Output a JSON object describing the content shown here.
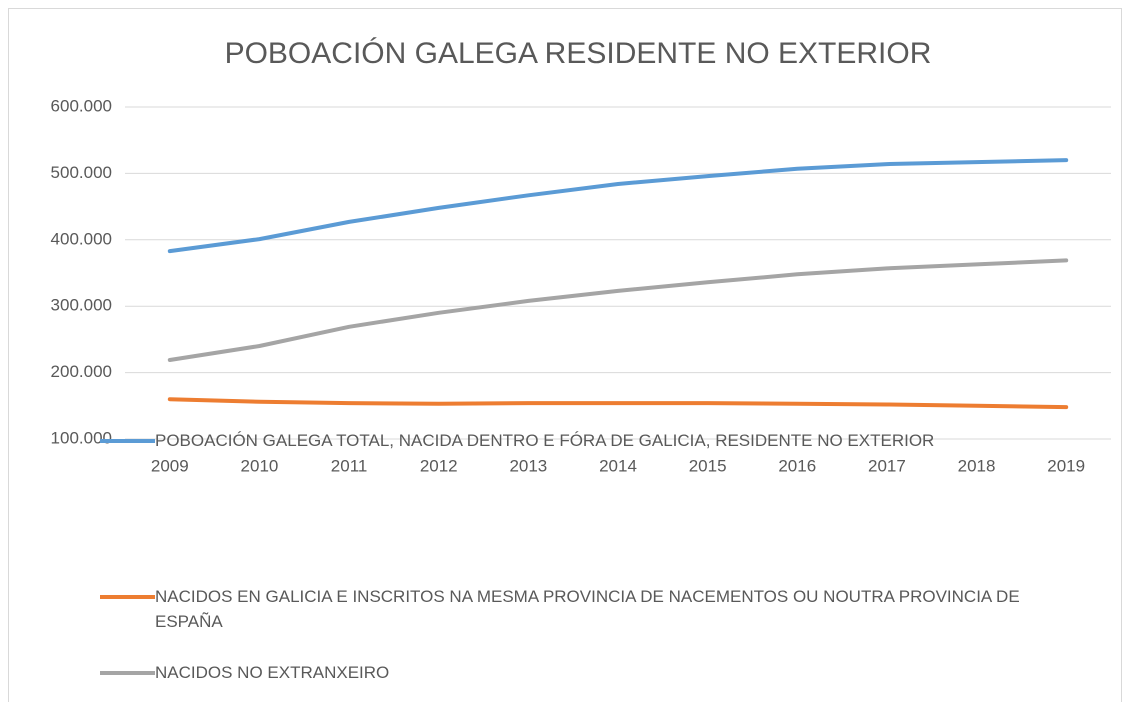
{
  "chart_data": {
    "type": "line",
    "title": "POBOACIÓN GALEGA RESIDENTE NO EXTERIOR",
    "categories": [
      "2009",
      "2010",
      "2011",
      "2012",
      "2013",
      "2014",
      "2015",
      "2016",
      "2017",
      "2018",
      "2019"
    ],
    "series": [
      {
        "name": "POBOACIÓN GALEGA TOTAL, NACIDA DENTRO E FÓRA DE GALICIA, RESIDENTE NO EXTERIOR",
        "color": "#5b9bd5",
        "values": [
          383000,
          401000,
          427000,
          448000,
          467000,
          484000,
          496000,
          507000,
          514000,
          517000,
          520000
        ]
      },
      {
        "name": "NACIDOS EN GALICIA E INSCRITOS NA MESMA PROVINCIA DE NACEMENTOS OU NOUTRA PROVINCIA DE ESPAÑA",
        "color": "#ed7d31",
        "values": [
          160000,
          156000,
          154000,
          153000,
          154000,
          154000,
          154000,
          153000,
          152000,
          150000,
          148000
        ]
      },
      {
        "name": "NACIDOS NO EXTRANXEIRO",
        "color": "#a5a5a5",
        "values": [
          219000,
          240000,
          269000,
          290000,
          308000,
          323000,
          336000,
          348000,
          357000,
          363000,
          369000
        ]
      }
    ],
    "ylim": [
      100000,
      600000
    ],
    "yticks": [
      {
        "value": 100000,
        "label": "100.000"
      },
      {
        "value": 200000,
        "label": "200.000"
      },
      {
        "value": 300000,
        "label": "300.000"
      },
      {
        "value": 400000,
        "label": "400.000"
      },
      {
        "value": 500000,
        "label": "500.000"
      },
      {
        "value": 600000,
        "label": "600.000"
      }
    ],
    "grid": true,
    "legend": "bottom"
  }
}
